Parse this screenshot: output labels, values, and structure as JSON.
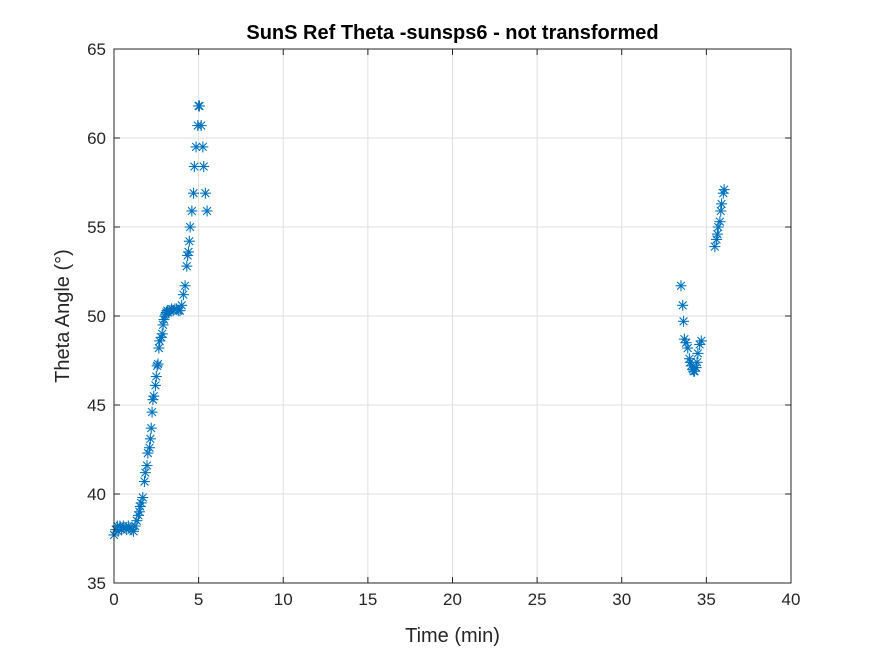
{
  "chart_data": {
    "type": "scatter",
    "title": "SunS Ref Theta -sunsps6 - not transformed",
    "xlabel": "Time (min)",
    "ylabel": "Theta Angle (°)",
    "xlim": [
      0,
      40
    ],
    "ylim": [
      35,
      65
    ],
    "xticks": [
      0,
      5,
      10,
      15,
      20,
      25,
      30,
      35,
      40
    ],
    "yticks": [
      35,
      40,
      45,
      50,
      55,
      60,
      65
    ],
    "grid": true,
    "legend": "none",
    "marker": "asterisk",
    "color": "#0072bd",
    "series": [
      {
        "x": [
          0.0,
          0.1,
          0.2,
          0.25,
          0.35,
          0.45,
          0.55,
          0.65,
          0.75,
          0.85,
          0.95,
          1.05,
          1.15,
          1.25,
          1.35,
          1.45,
          1.5,
          1.55,
          1.6,
          1.7,
          1.8,
          1.85,
          1.95,
          2.0,
          2.1,
          2.15,
          2.2,
          2.25,
          2.3,
          2.35,
          2.45,
          2.5,
          2.55,
          2.6,
          2.65,
          2.7,
          2.8,
          2.85,
          2.9,
          2.95,
          3.0,
          3.05,
          3.1,
          3.15,
          3.2,
          3.3,
          3.4,
          3.5,
          3.6,
          3.7,
          3.8,
          3.9,
          4.0,
          4.1,
          4.2,
          4.3,
          4.35,
          4.4,
          4.45,
          4.5,
          4.6,
          4.7,
          4.75,
          4.85,
          4.95,
          5.0,
          5.05,
          5.15,
          5.25,
          5.3,
          5.4,
          5.5,
          33.5,
          33.6,
          33.65,
          33.7,
          33.8,
          33.9,
          34.0,
          34.05,
          34.1,
          34.2,
          34.25,
          34.3,
          34.4,
          34.45,
          34.5,
          34.6,
          34.7,
          35.5,
          35.6,
          35.65,
          35.7,
          35.8,
          35.85,
          35.9,
          36.0,
          36.05
        ],
        "y": [
          37.7,
          38.0,
          38.2,
          37.9,
          38.2,
          38.0,
          38.2,
          38.1,
          38.0,
          38.2,
          38.1,
          38.0,
          37.9,
          38.2,
          38.5,
          38.8,
          39.0,
          39.3,
          39.5,
          39.8,
          40.7,
          41.2,
          41.6,
          42.3,
          42.6,
          43.1,
          43.7,
          44.6,
          45.3,
          45.5,
          46.1,
          46.6,
          47.2,
          47.3,
          48.2,
          48.6,
          48.8,
          49.0,
          49.5,
          49.8,
          50.0,
          50.1,
          50.2,
          50.3,
          50.2,
          50.3,
          50.4,
          50.3,
          50.4,
          50.4,
          50.3,
          50.3,
          50.6,
          51.2,
          51.7,
          52.8,
          53.4,
          53.6,
          54.2,
          55.0,
          55.9,
          56.9,
          58.4,
          59.5,
          60.7,
          61.8,
          61.8,
          60.7,
          59.5,
          58.4,
          56.9,
          55.9,
          51.7,
          50.6,
          49.7,
          48.7,
          48.5,
          48.2,
          47.6,
          47.4,
          47.2,
          47.0,
          46.9,
          46.9,
          47.1,
          47.4,
          47.9,
          48.4,
          48.6,
          53.9,
          54.3,
          54.6,
          55.0,
          55.3,
          55.9,
          56.3,
          56.9,
          57.1
        ]
      }
    ]
  }
}
